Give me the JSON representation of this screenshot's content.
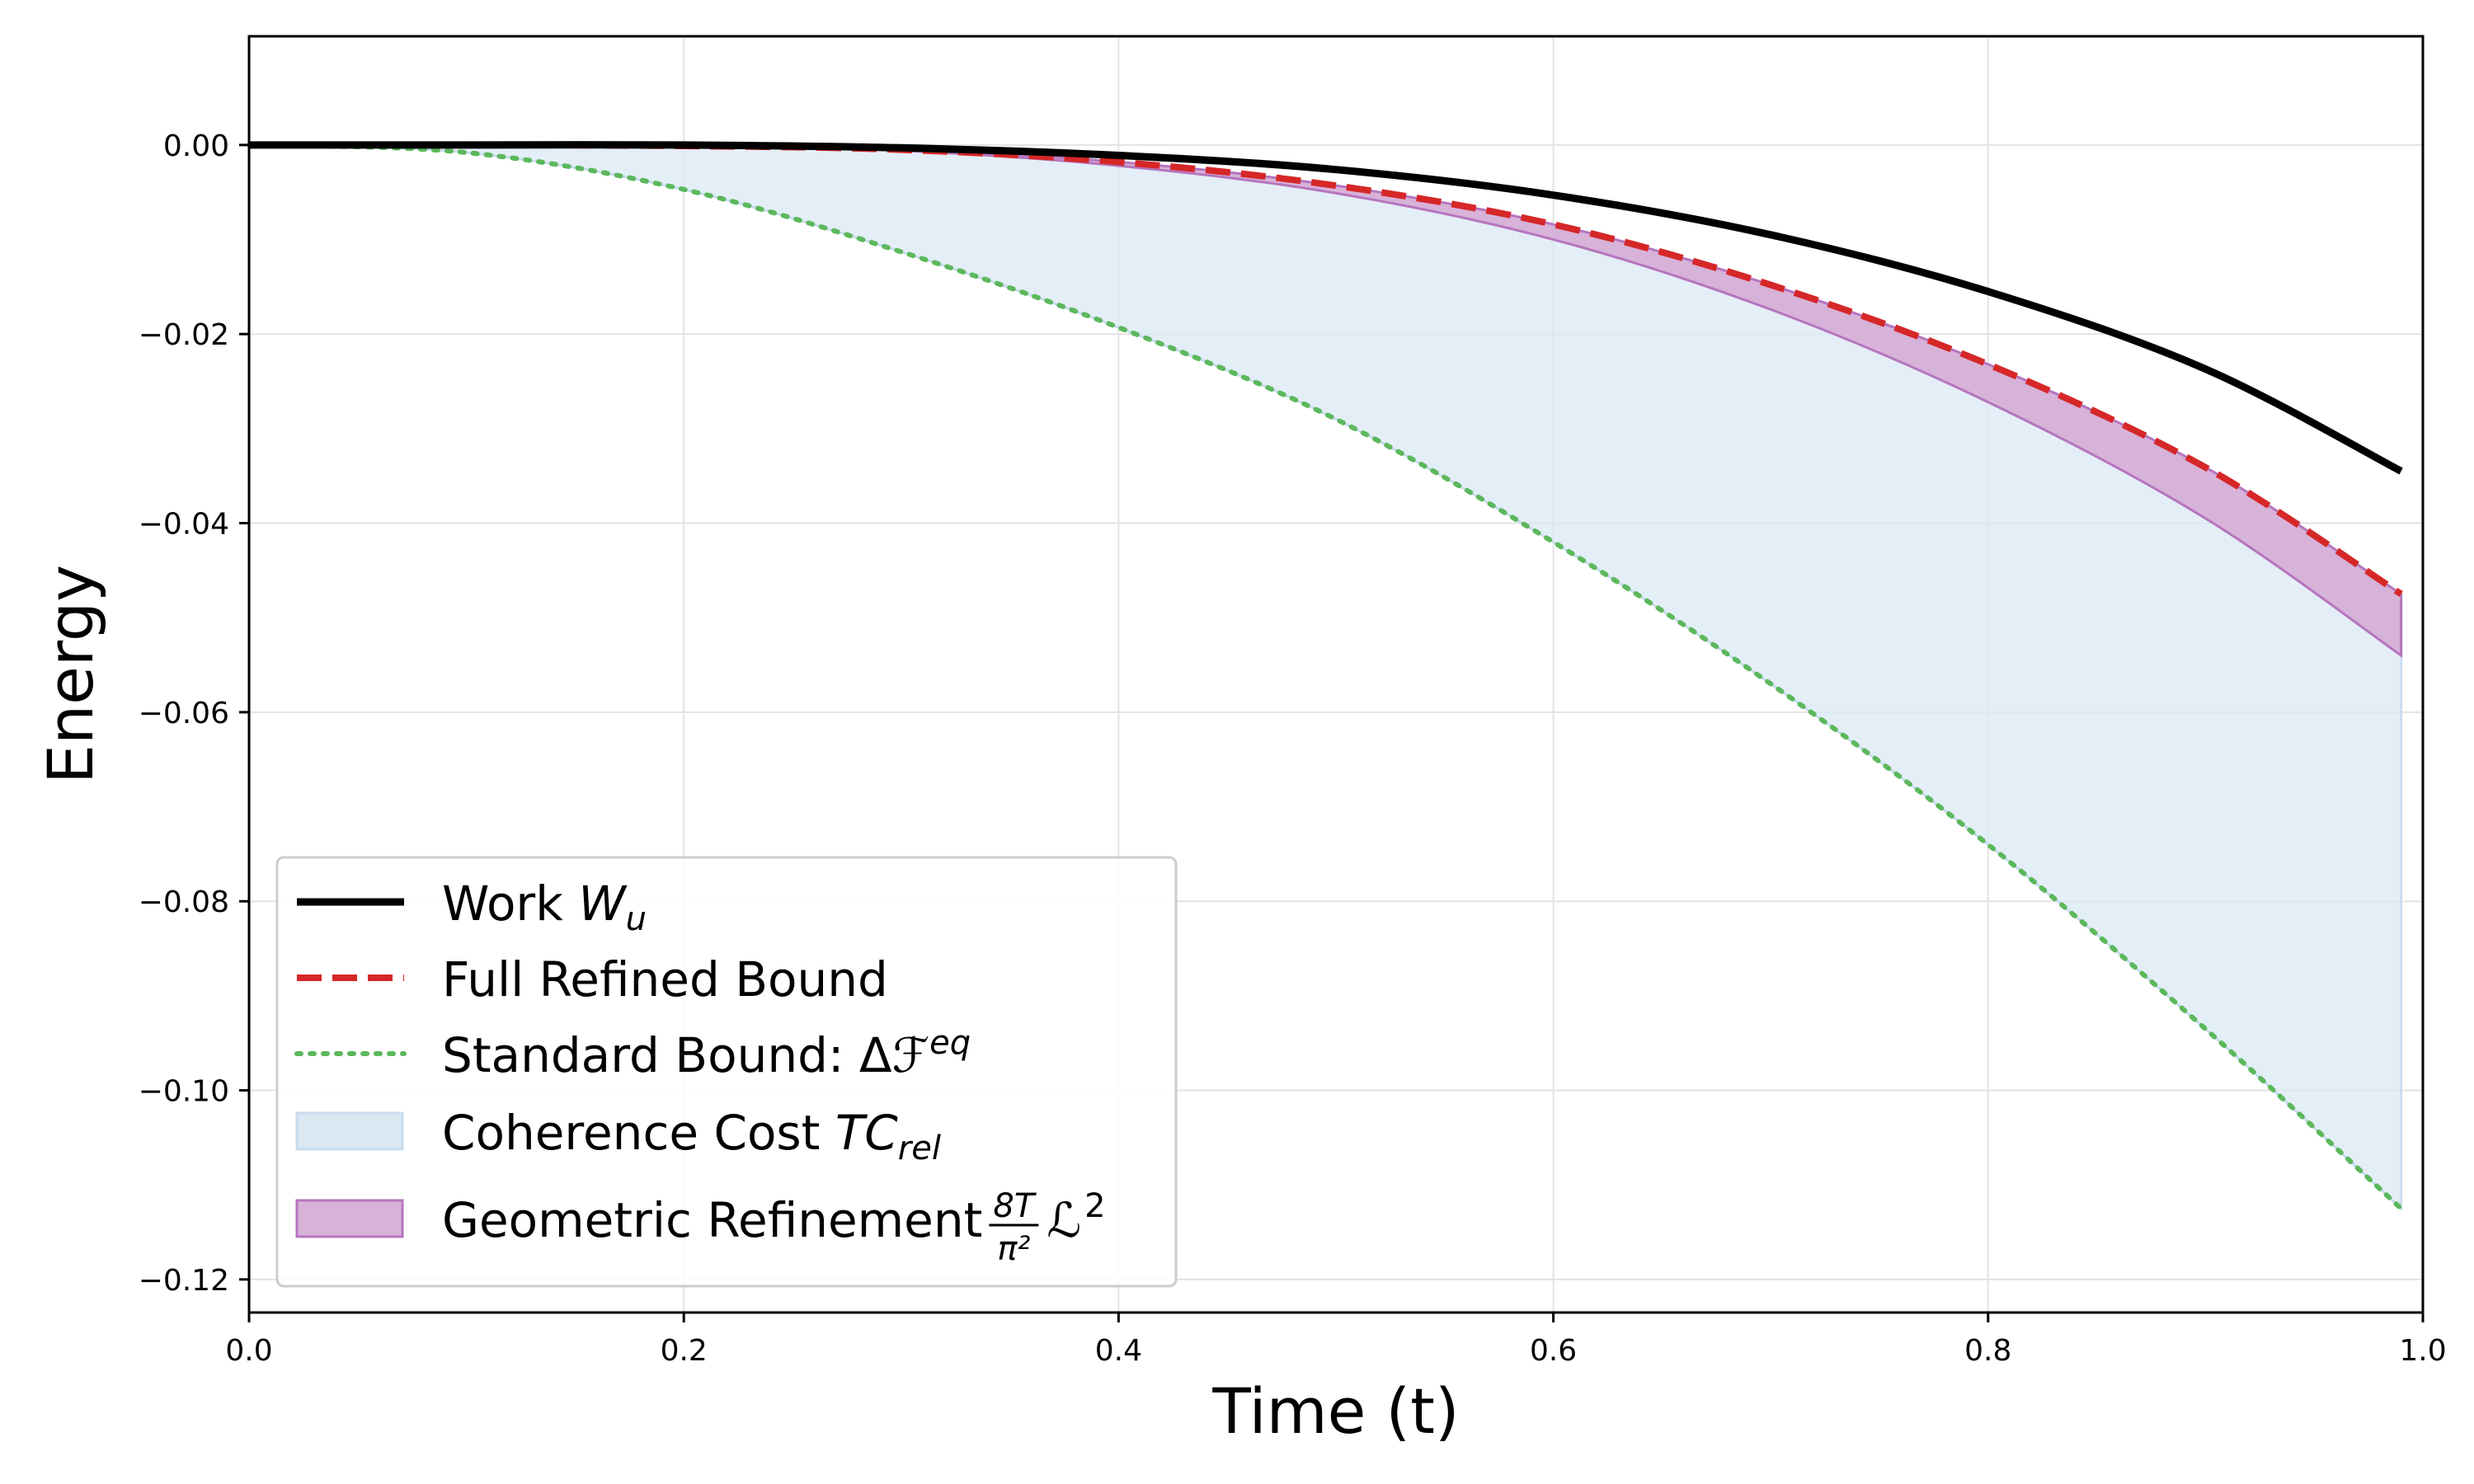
{
  "chart_data": {
    "type": "line",
    "title": "",
    "xlabel": "Time (t)",
    "ylabel": "Energy",
    "xlim": [
      0.0,
      1.0
    ],
    "ylim": [
      -0.1235,
      0.0115
    ],
    "grid": true,
    "legend_position": "lower-left",
    "xticks": [
      {
        "value": 0.0,
        "label": "0.0"
      },
      {
        "value": 0.2,
        "label": "0.2"
      },
      {
        "value": 0.4,
        "label": "0.4"
      },
      {
        "value": 0.6,
        "label": "0.6"
      },
      {
        "value": 0.8,
        "label": "0.8"
      },
      {
        "value": 1.0,
        "label": "1.0"
      }
    ],
    "yticks": [
      {
        "value": 0.0,
        "label": "0.00"
      },
      {
        "value": -0.02,
        "label": "−0.02"
      },
      {
        "value": -0.04,
        "label": "−0.04"
      },
      {
        "value": -0.06,
        "label": "−0.06"
      },
      {
        "value": -0.08,
        "label": "−0.08"
      },
      {
        "value": -0.1,
        "label": "−0.10"
      },
      {
        "value": -0.12,
        "label": "−0.12"
      }
    ],
    "x": [
      0.0,
      0.1,
      0.2,
      0.3,
      0.4,
      0.5,
      0.6,
      0.7,
      0.8,
      0.9,
      0.99
    ],
    "series": [
      {
        "name": "Work W_u",
        "legend": {
          "text": "Work ",
          "math": "W",
          "sub": "u"
        },
        "style": "solid",
        "color": "#000000",
        "values": [
          0.0,
          0.0,
          0.0,
          -0.0003,
          -0.0011,
          -0.0026,
          -0.0053,
          -0.0095,
          -0.0155,
          -0.0237,
          -0.0345
        ]
      },
      {
        "name": "Full Refined Bound",
        "legend": {
          "text": "Full Refined Bound"
        },
        "style": "dashed",
        "color": "#d62728",
        "values": [
          0.0,
          0.0,
          -0.0001,
          -0.0005,
          -0.0018,
          -0.0043,
          -0.0084,
          -0.0148,
          -0.0232,
          -0.0341,
          -0.0475
        ]
      },
      {
        "name": "Standard Bound: ΔF^eq",
        "legend": {
          "text": "Standard Bound: Δ",
          "math": "ℱ",
          "sup": "eq"
        },
        "style": "dotted",
        "color": "#5cb85c",
        "values": [
          0.0,
          -0.0008,
          -0.0047,
          -0.0113,
          -0.0193,
          -0.029,
          -0.042,
          -0.057,
          -0.074,
          -0.0935,
          -0.1125
        ]
      }
    ],
    "bands": [
      {
        "name": "Coherence Cost TC_rel",
        "legend": {
          "text": "Coherence Cost ",
          "math": "TC",
          "sub": "rel"
        },
        "fill": "#dbe8f4",
        "stroke": "#c9dcee",
        "between": [
          "Standard Bound lower",
          "Full Refined Bound upper"
        ],
        "lower": [
          0.0,
          -0.0008,
          -0.0047,
          -0.0113,
          -0.0193,
          -0.029,
          -0.042,
          -0.057,
          -0.074,
          -0.0935,
          -0.1125
        ],
        "upper": [
          0.0,
          0.0,
          -0.0001,
          -0.0005,
          -0.0018,
          -0.0043,
          -0.0084,
          -0.0148,
          -0.0232,
          -0.0341,
          -0.0475
        ]
      },
      {
        "name": "Geometric Refinement (8T/π²) L²",
        "legend": {
          "text": "Geometric Refinement ",
          "frac_num": "8T",
          "frac_den": "π²",
          "math": "ℒ",
          "sup": "2"
        },
        "fill": "#d7b2d9",
        "stroke": "#b675be",
        "lower": [
          0.0,
          0.0,
          -0.0001,
          -0.0006,
          -0.0022,
          -0.0051,
          -0.01,
          -0.0174,
          -0.0272,
          -0.0395,
          -0.054
        ],
        "upper": [
          0.0,
          0.0,
          -0.0001,
          -0.0005,
          -0.0018,
          -0.0043,
          -0.0084,
          -0.0148,
          -0.0232,
          -0.0341,
          -0.0475
        ]
      }
    ]
  }
}
